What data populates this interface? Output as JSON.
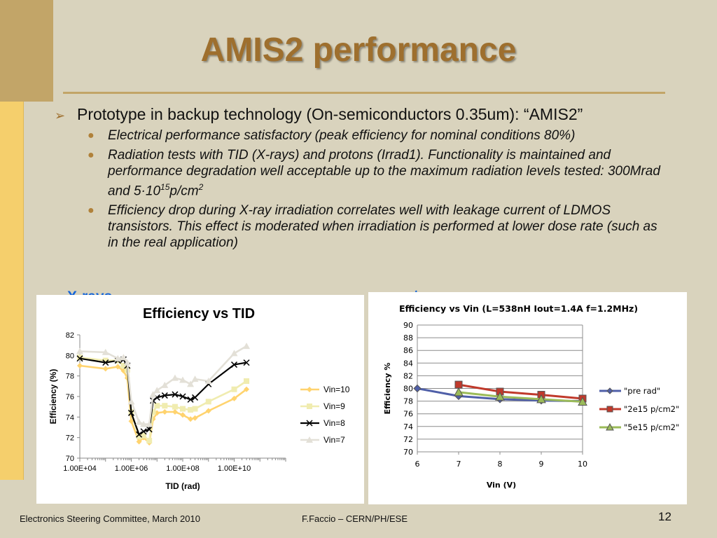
{
  "slide": {
    "title": "AMIS2 performance",
    "bullet": "Prototype in backup technology (On-semiconductors 0.35um): “AMIS2”",
    "sub_bullets": [
      {
        "text": "Electrical performance satisfactory (peak efficiency for nominal conditions 80%)"
      },
      {
        "pre": "Radiation tests with TID (X-rays) and protons (Irrad1). Functionality is maintained and performance degradation well acceptable up to the maximum radiation levels tested: 300Mrad and 5·10",
        "sup1": "15",
        "mid": "p/cm",
        "sup2": "2"
      },
      {
        "text": "Efficiency drop during X-ray irradiation correlates well with leakage current of LDMOS transistors. This effect is moderated when irradiation is performed at lower dose rate (such as in the real application)"
      }
    ],
    "left_chart_label": "X-rays",
    "right_chart_label": "protons",
    "footer_left": "Electronics Steering Committee, March 2010",
    "footer_center": "F.Faccio – CERN/PH/ESE",
    "page_number": "12"
  },
  "chart_data": [
    {
      "type": "line",
      "title": "Efficiency vs TID",
      "xlabel": "TID (rad)",
      "ylabel": "Efficiency (%)",
      "x_scale": "log",
      "xlim": [
        10000,
        1000000000000
      ],
      "ylim": [
        70,
        82
      ],
      "x_ticks": [
        "1.00E+04",
        "1.00E+06",
        "1.00E+08",
        "1.00E+10"
      ],
      "y_ticks": [
        "70",
        "72",
        "74",
        "76",
        "78",
        "80",
        "82"
      ],
      "x": [
        10000,
        100000,
        300000,
        500000,
        700000,
        1000000,
        2000000,
        3000000,
        5000000,
        7000000,
        10000000,
        20000000,
        50000000,
        100000000,
        200000000,
        300000000,
        1000000000,
        10000000000,
        30000000000
      ],
      "series": [
        {
          "name": "Vin=10",
          "color": "#ffd36e",
          "marker": "diamond",
          "values": [
            79.0,
            78.7,
            78.9,
            78.5,
            77.8,
            73.6,
            71.6,
            72.0,
            71.5,
            73.8,
            74.4,
            74.5,
            74.5,
            74.2,
            73.8,
            73.9,
            74.6,
            75.8,
            76.7
          ]
        },
        {
          "name": "Vin=9",
          "color": "#f0ecb0",
          "marker": "square",
          "values": [
            79.8,
            79.5,
            79.5,
            79.0,
            78.6,
            74.5,
            72.1,
            72.2,
            71.7,
            74.5,
            75.1,
            75.1,
            75.0,
            74.8,
            74.7,
            74.8,
            75.5,
            76.7,
            77.5
          ]
        },
        {
          "name": "Vin=8",
          "color": "#000000",
          "marker": "x",
          "values": [
            79.7,
            79.3,
            79.5,
            79.6,
            79.0,
            74.4,
            72.3,
            72.6,
            72.8,
            75.6,
            75.9,
            76.1,
            76.2,
            76.0,
            75.7,
            75.9,
            77.2,
            79.1,
            79.3
          ]
        },
        {
          "name": "Vin=7",
          "color": "#e3e0d7",
          "marker": "triangle",
          "values": [
            80.4,
            80.3,
            79.7,
            79.8,
            79.3,
            75.5,
            73.5,
            73.3,
            73.3,
            76.2,
            76.6,
            77.1,
            77.8,
            77.6,
            77.2,
            77.7,
            77.5,
            80.2,
            80.9
          ]
        }
      ]
    },
    {
      "type": "line",
      "title": "Efficiency vs Vin (L=538nH Iout=1.4A f=1.2MHz)",
      "xlabel": "Vin (V)",
      "ylabel": "Efficiency %",
      "xlim": [
        6,
        10
      ],
      "ylim": [
        70,
        90
      ],
      "x_ticks": [
        "6",
        "7",
        "8",
        "9",
        "10"
      ],
      "y_ticks": [
        "70",
        "72",
        "74",
        "76",
        "78",
        "80",
        "82",
        "84",
        "86",
        "88",
        "90"
      ],
      "series": [
        {
          "name": "\"pre rad\"",
          "color": "#4f5fa8",
          "marker": "diamond",
          "x": [
            6,
            7,
            8,
            9,
            10
          ],
          "values": [
            80.0,
            78.8,
            78.3,
            78.1,
            78.0
          ]
        },
        {
          "name": "\"2e15 p/cm2\"",
          "color": "#c0392b",
          "marker": "square",
          "x": [
            7,
            8,
            9,
            10
          ],
          "values": [
            80.6,
            79.5,
            79.0,
            78.4
          ]
        },
        {
          "name": "\"5e15 p/cm2\"",
          "color": "#9bbb59",
          "marker": "triangle",
          "x": [
            7,
            8,
            9,
            10
          ],
          "values": [
            79.4,
            78.7,
            78.3,
            77.9
          ]
        }
      ]
    }
  ]
}
